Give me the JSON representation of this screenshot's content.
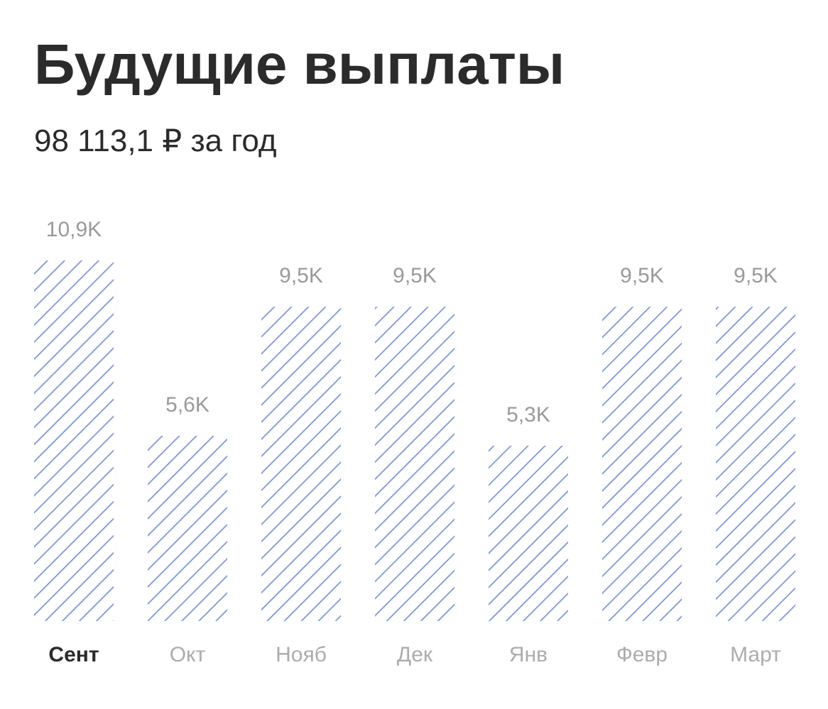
{
  "chart_data": {
    "type": "bar",
    "title": "Будущие выплаты",
    "subtitle": "98 113,1 ₽ за год",
    "categories": [
      "Сент",
      "Окт",
      "Нояб",
      "Дек",
      "Янв",
      "Февр",
      "Март"
    ],
    "values": [
      10.9,
      5.6,
      9.5,
      9.5,
      5.3,
      9.5,
      9.5
    ],
    "value_labels": [
      "10,9K",
      "5,6K",
      "9,5K",
      "9,5K",
      "5,3K",
      "9,5K",
      "9,5K"
    ],
    "color": "#7b96d2",
    "selected": 0
  }
}
